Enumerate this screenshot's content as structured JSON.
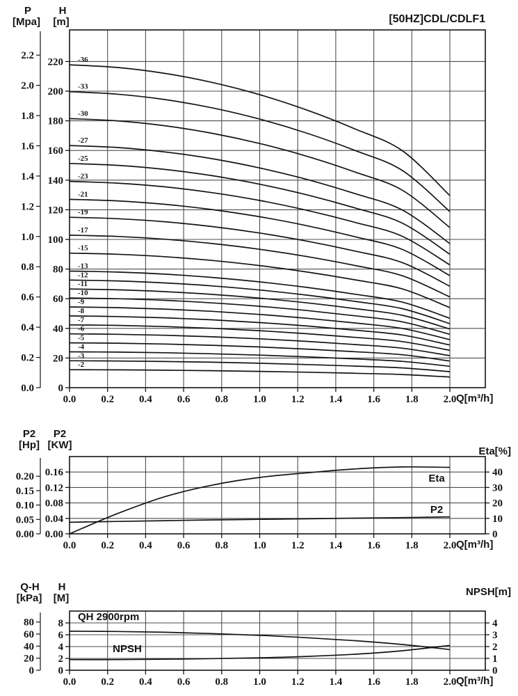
{
  "title": "[50HZ]CDL/CDLF1",
  "colors": {
    "ink": "#141414",
    "grid": "#4d4d4d"
  },
  "chart_data": [
    {
      "id": "hq",
      "type": "line",
      "description": "Head vs flow curves for pump stage counts 2 to 36 at 50Hz",
      "axes": {
        "left_outer": {
          "name": "P",
          "unit": "[Mpa]",
          "ticks": [
            "0.0",
            "0.2",
            "0.4",
            "0.6",
            "0.8",
            "1.0",
            "1.2",
            "1.4",
            "1.6",
            "1.8",
            "2.0",
            "2.2"
          ]
        },
        "left_inner": {
          "name": "H",
          "unit": "[m]",
          "ticks": [
            "0",
            "20",
            "40",
            "60",
            "80",
            "100",
            "120",
            "140",
            "160",
            "180",
            "200",
            "220"
          ]
        },
        "x": {
          "unit": "Q[m³/h]",
          "ticks": [
            "0.0",
            "0.2",
            "0.4",
            "0.6",
            "0.8",
            "1.0",
            "1.2",
            "1.4",
            "1.6",
            "1.8",
            "2.0"
          ]
        }
      },
      "q": [
        0,
        0.25,
        0.5,
        0.75,
        1.0,
        1.25,
        1.5,
        1.75,
        2.0
      ],
      "per_stage_head_m": [
        6.05,
        6.0,
        5.89,
        5.72,
        5.49,
        5.2,
        4.85,
        4.44,
        3.6
      ],
      "stages": [
        36,
        33,
        30,
        27,
        25,
        23,
        21,
        19,
        17,
        15,
        13,
        12,
        11,
        10,
        9,
        8,
        7,
        6,
        5,
        4,
        3,
        2
      ],
      "curve_label_prefix": "-"
    },
    {
      "id": "power",
      "type": "line",
      "description": "Shaft power P2 and efficiency Eta vs flow",
      "axes": {
        "left_outer": {
          "name": "P2",
          "unit": "[Hp]",
          "ticks": [
            "0.00",
            "0.05",
            "0.10",
            "0.15",
            "0.20"
          ]
        },
        "left_inner": {
          "name": "P2",
          "unit": "[KW]",
          "ticks": [
            "0.00",
            "0.04",
            "0.08",
            "0.12",
            "0.16"
          ]
        },
        "right": {
          "label": "Eta[%]",
          "ticks": [
            "0",
            "10",
            "20",
            "30",
            "40"
          ]
        },
        "x": {
          "unit": "Q[m³/h]",
          "ticks": [
            "0.0",
            "0.2",
            "0.4",
            "0.6",
            "0.8",
            "1.0",
            "1.2",
            "1.4",
            "1.6",
            "1.8",
            "2.0"
          ]
        }
      },
      "q": [
        0,
        0.25,
        0.5,
        0.75,
        1.0,
        1.25,
        1.5,
        1.75,
        2.0
      ],
      "series": [
        {
          "name": "Eta",
          "axis": "eta",
          "values": [
            0,
            13,
            24,
            31.5,
            36.5,
            39.5,
            42,
            43.3,
            43
          ]
        },
        {
          "name": "P2",
          "axis": "kw",
          "values": [
            0.03,
            0.032,
            0.034,
            0.036,
            0.0375,
            0.039,
            0.0405,
            0.042,
            0.044
          ]
        }
      ]
    },
    {
      "id": "qh",
      "type": "line",
      "rpm_label": "QH 2900rpm",
      "description": "Single-stage QH curve at 2900rpm and NPSH vs flow",
      "axes": {
        "left_outer": {
          "name": "Q-H",
          "unit": "[kPa]",
          "ticks": [
            "0",
            "20",
            "40",
            "60",
            "80"
          ]
        },
        "left_inner": {
          "name": "H",
          "unit": "[M]",
          "ticks": [
            "0",
            "2",
            "4",
            "6",
            "8"
          ]
        },
        "right": {
          "label": "NPSH[m]",
          "ticks": [
            "0",
            "1",
            "2",
            "3",
            "4"
          ]
        },
        "x": {
          "unit": "Q[m³/h]",
          "ticks": [
            "0.0",
            "0.2",
            "0.4",
            "0.6",
            "0.8",
            "1.0",
            "1.2",
            "1.4",
            "1.6",
            "1.8",
            "2.0"
          ]
        }
      },
      "q": [
        0,
        0.25,
        0.5,
        0.75,
        1.0,
        1.25,
        1.5,
        1.75,
        2.0
      ],
      "series": [
        {
          "name": "QH",
          "axis": "m",
          "values": [
            6.6,
            6.55,
            6.42,
            6.2,
            5.9,
            5.5,
            5.0,
            4.35,
            3.5
          ]
        },
        {
          "name": "NPSH",
          "axis": "npsh",
          "values": [
            0.9,
            0.9,
            0.93,
            0.98,
            1.05,
            1.17,
            1.35,
            1.65,
            2.1
          ]
        }
      ]
    }
  ]
}
